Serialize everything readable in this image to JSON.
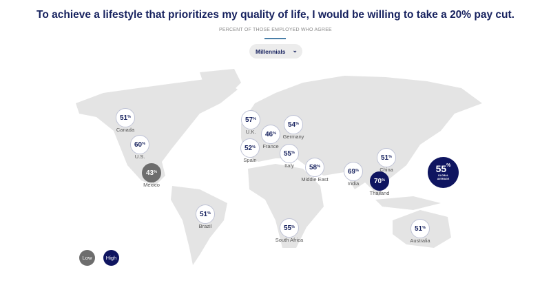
{
  "header": {
    "title": "To achieve a lifestyle that prioritizes my quality of life, I would be willing to take a 20% pay cut.",
    "subtitle": "PERCENT OF THOSE EMPLOYED WHO AGREE"
  },
  "filter": {
    "selected": "Millennials",
    "icon": "chevron-down-icon"
  },
  "markers": [
    {
      "label": "Canada",
      "value": "51",
      "level": "mid"
    },
    {
      "label": "U.S.",
      "value": "60",
      "level": "mid"
    },
    {
      "label": "Mexico",
      "value": "43",
      "level": "low"
    },
    {
      "label": "Brazil",
      "value": "51",
      "level": "mid"
    },
    {
      "label": "U.K.",
      "value": "57",
      "level": "mid"
    },
    {
      "label": "France",
      "value": "46",
      "level": "mid"
    },
    {
      "label": "Germany",
      "value": "54",
      "level": "mid"
    },
    {
      "label": "Spain",
      "value": "52",
      "level": "mid"
    },
    {
      "label": "Italy",
      "value": "55",
      "level": "mid"
    },
    {
      "label": "Middle East",
      "value": "58",
      "level": "mid"
    },
    {
      "label": "South Africa",
      "value": "55",
      "level": "mid"
    },
    {
      "label": "India",
      "value": "69",
      "level": "mid"
    },
    {
      "label": "China",
      "value": "51",
      "level": "mid"
    },
    {
      "label": "Thailand",
      "value": "70",
      "level": "high"
    },
    {
      "label": "Australia",
      "value": "51",
      "level": "mid"
    }
  ],
  "percent_sign": "%",
  "global": {
    "value": "55",
    "line1": "GLOBAL",
    "line2": "AVERAGE"
  },
  "legend": {
    "low": "Low",
    "high": "High"
  },
  "colors": {
    "navy": "#0f1560",
    "low": "#6d6d6d",
    "land": "#e4e4e4"
  }
}
